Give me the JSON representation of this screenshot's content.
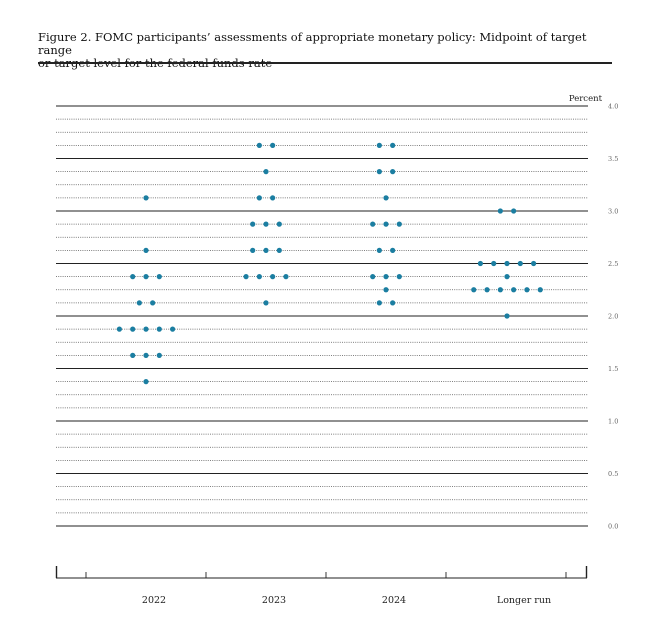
{
  "title_line1": "Figure 2.  FOMC participants’ assessments of appropriate monetary policy:  Midpoint of target range",
  "title_line2": "or target level for the federal funds rate",
  "chart_data": {
    "type": "scatter",
    "ylabel": "Percent",
    "ylim": [
      0,
      4
    ],
    "yticks": [
      "0.0",
      "0.5",
      "1.0",
      "1.5",
      "2.0",
      "2.5",
      "3.0",
      "3.5",
      "4.0"
    ],
    "categories": [
      "2022",
      "2023",
      "2024",
      "Longer run"
    ],
    "dot_color": "#1b7ea1",
    "grid": "dotted lines every 0.125, solid lines every 0.5",
    "dots": [
      {
        "category": "2022",
        "values": [
          {
            "y": 3.125,
            "count": 1
          },
          {
            "y": 2.625,
            "count": 1
          },
          {
            "y": 2.375,
            "count": 3
          },
          {
            "y": 2.125,
            "count": 2
          },
          {
            "y": 1.875,
            "count": 5
          },
          {
            "y": 1.625,
            "count": 3
          },
          {
            "y": 1.375,
            "count": 1
          }
        ]
      },
      {
        "category": "2023",
        "values": [
          {
            "y": 3.625,
            "count": 2
          },
          {
            "y": 3.375,
            "count": 1
          },
          {
            "y": 3.125,
            "count": 2
          },
          {
            "y": 2.875,
            "count": 3
          },
          {
            "y": 2.625,
            "count": 3
          },
          {
            "y": 2.375,
            "count": 4
          },
          {
            "y": 2.125,
            "count": 1
          }
        ]
      },
      {
        "category": "2024",
        "values": [
          {
            "y": 3.625,
            "count": 2
          },
          {
            "y": 3.375,
            "count": 2
          },
          {
            "y": 3.125,
            "count": 1
          },
          {
            "y": 2.875,
            "count": 3
          },
          {
            "y": 2.625,
            "count": 2
          },
          {
            "y": 2.375,
            "count": 3
          },
          {
            "y": 2.25,
            "count": 1
          },
          {
            "y": 2.125,
            "count": 2
          }
        ]
      },
      {
        "category": "Longer run",
        "values": [
          {
            "y": 3.0,
            "count": 2
          },
          {
            "y": 2.5,
            "count": 5
          },
          {
            "y": 2.375,
            "count": 1
          },
          {
            "y": 2.25,
            "count": 6
          },
          {
            "y": 2.0,
            "count": 1
          }
        ]
      }
    ]
  }
}
